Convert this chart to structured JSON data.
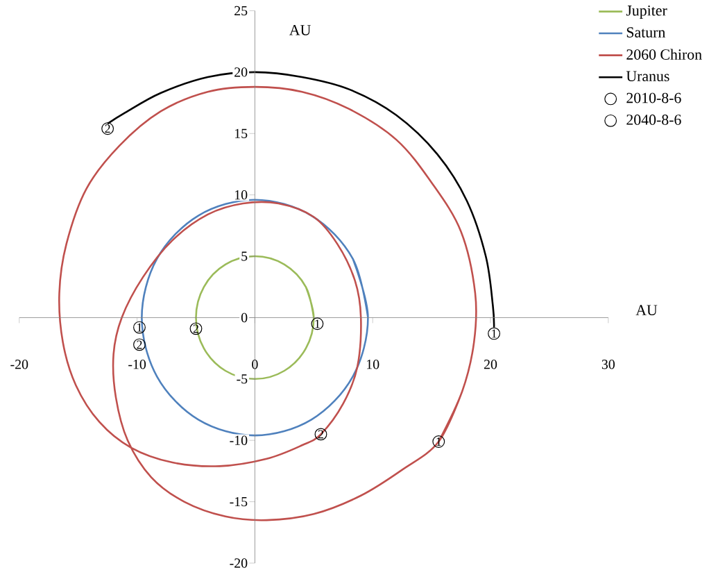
{
  "chart_data": {
    "type": "line",
    "xlabel": "AU",
    "ylabel": "AU",
    "xlim": [
      -20,
      30
    ],
    "ylim": [
      -20,
      25
    ],
    "xticks": [
      -20,
      -10,
      0,
      10,
      20,
      30
    ],
    "yticks": [
      -20,
      -15,
      -10,
      -5,
      0,
      5,
      10,
      15,
      20,
      25
    ],
    "legend": "top right",
    "series": [
      {
        "name": "Jupiter",
        "color": "#9bbb59",
        "x": [
          5,
          4.33,
          2.5,
          0,
          -2.5,
          -4.33,
          -5,
          -4.33,
          -2.5,
          0,
          2.5,
          4.33,
          5,
          4.33
        ],
        "values": [
          0,
          2.5,
          4.33,
          5,
          4.33,
          2.5,
          0,
          -2.5,
          -4.33,
          -5,
          -4.33,
          -2.5,
          0,
          2.5
        ]
      },
      {
        "name": "Saturn",
        "color": "#4f81bd",
        "x": [
          9.6,
          8.31,
          4.8,
          0,
          -4.8,
          -8.31,
          -9.6,
          -8.31,
          -4.8,
          0,
          4.8,
          8.31,
          9.6,
          8.31
        ],
        "values": [
          0,
          4.8,
          8.31,
          9.6,
          8.31,
          4.8,
          0,
          -4.8,
          -8.31,
          -9.6,
          -8.31,
          -4.8,
          0,
          4.8
        ]
      },
      {
        "name": "2060 Chiron",
        "color": "#c0504d",
        "x": [
          15.6,
          17.6,
          18.6,
          18.7,
          17.5,
          15,
          12,
          8,
          4,
          0,
          -4,
          -8,
          -11.5,
          -14.3,
          -16,
          -16.6,
          -16.3,
          -15.2,
          -13.2,
          -10.5,
          -7,
          -3,
          1,
          4,
          5.6,
          7.5,
          8.7,
          9,
          8.5,
          7,
          5,
          2,
          -1,
          -4,
          -7,
          -9.5,
          -11.3,
          -12,
          -11.8,
          -10.8,
          -8.8,
          -6,
          -2.5,
          1,
          5,
          9,
          12.5,
          15.6,
          17.6
        ],
        "values": [
          -10.1,
          -6,
          -2,
          2,
          7,
          11,
          14.5,
          17,
          18.4,
          18.8,
          18.4,
          16.8,
          14,
          10.5,
          6,
          2,
          -2,
          -5.5,
          -8.5,
          -10.6,
          -11.8,
          -12.1,
          -11.5,
          -10.4,
          -9.5,
          -7,
          -4,
          0,
          3,
          6,
          8.2,
          9.3,
          9.3,
          8.4,
          6.3,
          3.3,
          0,
          -3,
          -6.5,
          -10,
          -13,
          -15,
          -16.2,
          -16.5,
          -16,
          -14.5,
          -12.4,
          -10.1,
          -6
        ]
      },
      {
        "name": "Uranus",
        "color": "#000000",
        "x": [
          20.3,
          20.2,
          19.6,
          18,
          15.5,
          12,
          8,
          4,
          0,
          -4,
          -8,
          -11,
          -12.5
        ],
        "values": [
          -0.8,
          1,
          5,
          9.5,
          13.3,
          16.5,
          18.6,
          19.6,
          20,
          19.6,
          18.3,
          16.7,
          15.8
        ]
      },
      {
        "name": "2010-8-6",
        "type": "scatter",
        "marker": "circle",
        "color": "#000000",
        "x": [
          5.3,
          -9.8,
          15.6,
          20.3
        ],
        "values": [
          -0.5,
          -0.8,
          -10.1,
          -1.3
        ]
      },
      {
        "name": "2040-8-6",
        "type": "scatter",
        "marker": "circle",
        "color": "#000000",
        "x": [
          -5,
          -9.8,
          5.6,
          -12.5
        ],
        "values": [
          -0.9,
          -2.2,
          -9.5,
          15.4
        ]
      }
    ],
    "annotations": [
      {
        "text": "1",
        "x": 5.3,
        "y": -0.5
      },
      {
        "text": "1",
        "x": -9.8,
        "y": -0.8
      },
      {
        "text": "1",
        "x": 15.6,
        "y": -10.1
      },
      {
        "text": "1",
        "x": 20.3,
        "y": -1.3
      },
      {
        "text": "2",
        "x": -5,
        "y": -0.9
      },
      {
        "text": "2",
        "x": -9.8,
        "y": -2.2
      },
      {
        "text": "2",
        "x": 5.6,
        "y": -9.5
      },
      {
        "text": "2",
        "x": -12.5,
        "y": 15.4
      }
    ]
  }
}
